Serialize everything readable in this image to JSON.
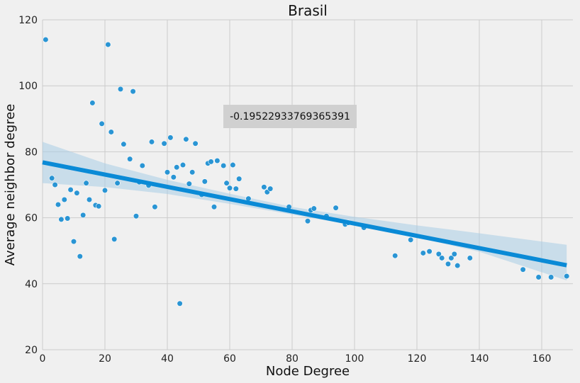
{
  "chart_data": {
    "type": "scatter",
    "title": "Brasil",
    "xlabel": "Node Degree",
    "ylabel": "Average neighbor degree",
    "xlim": [
      0,
      170
    ],
    "ylim": [
      20,
      120
    ],
    "xticks": [
      0,
      20,
      40,
      60,
      80,
      100,
      120,
      140,
      160
    ],
    "yticks": [
      20,
      40,
      60,
      80,
      100,
      120
    ],
    "grid": true,
    "annotation": "-0.19522933769365391",
    "colors": {
      "points": "#1f8fd2",
      "regression": "#0a8ad6",
      "ci_band": "#a9cde6",
      "background": "#f0f0f0",
      "grid": "#cbcbcb",
      "annotation_box": "#d0d0d0"
    },
    "points": [
      [
        1,
        114
      ],
      [
        3,
        72
      ],
      [
        4,
        70
      ],
      [
        5,
        64
      ],
      [
        6,
        59.5
      ],
      [
        7,
        65.5
      ],
      [
        8,
        59.8
      ],
      [
        9,
        68.5
      ],
      [
        10,
        52.8
      ],
      [
        11,
        67.5
      ],
      [
        12,
        48.3
      ],
      [
        13,
        60.8
      ],
      [
        14,
        70.5
      ],
      [
        15,
        65.5
      ],
      [
        16,
        94.8
      ],
      [
        17,
        63.8
      ],
      [
        18,
        63.5
      ],
      [
        19,
        88.5
      ],
      [
        20,
        68.3
      ],
      [
        21,
        112.5
      ],
      [
        22,
        86
      ],
      [
        23,
        53.5
      ],
      [
        24,
        70.5
      ],
      [
        25,
        99
      ],
      [
        26,
        82.3
      ],
      [
        28,
        77.8
      ],
      [
        29,
        98.3
      ],
      [
        30,
        60.5
      ],
      [
        31,
        70.8
      ],
      [
        32,
        75.8
      ],
      [
        34,
        69.8
      ],
      [
        35,
        83
      ],
      [
        36,
        63.3
      ],
      [
        39,
        82.5
      ],
      [
        40,
        73.8
      ],
      [
        41,
        84.3
      ],
      [
        42,
        72.3
      ],
      [
        43,
        75.3
      ],
      [
        44,
        34
      ],
      [
        45,
        76
      ],
      [
        46,
        83.8
      ],
      [
        47,
        70.3
      ],
      [
        48,
        73.8
      ],
      [
        49,
        82.5
      ],
      [
        51,
        67
      ],
      [
        52,
        71
      ],
      [
        53,
        76.5
      ],
      [
        54,
        77
      ],
      [
        55,
        63.3
      ],
      [
        56,
        77.3
      ],
      [
        58,
        75.8
      ],
      [
        59,
        70.5
      ],
      [
        60,
        69
      ],
      [
        61,
        76
      ],
      [
        62,
        68.8
      ],
      [
        63,
        71.8
      ],
      [
        66,
        65.8
      ],
      [
        71,
        69.3
      ],
      [
        72,
        67.8
      ],
      [
        73,
        68.8
      ],
      [
        79,
        63.3
      ],
      [
        85,
        59
      ],
      [
        86,
        62.3
      ],
      [
        87,
        62.8
      ],
      [
        91,
        60.5
      ],
      [
        94,
        63
      ],
      [
        97,
        58
      ],
      [
        98,
        58.5
      ],
      [
        103,
        57
      ],
      [
        113,
        48.5
      ],
      [
        118,
        53.3
      ],
      [
        122,
        49.3
      ],
      [
        124,
        49.8
      ],
      [
        127,
        49
      ],
      [
        128,
        47.8
      ],
      [
        130,
        46
      ],
      [
        131,
        47.8
      ],
      [
        132,
        49
      ],
      [
        133,
        45.5
      ],
      [
        137,
        47.8
      ],
      [
        154,
        44.3
      ],
      [
        159,
        42
      ],
      [
        163,
        42
      ],
      [
        168,
        42.3
      ]
    ],
    "regression": {
      "x": [
        0,
        168
      ],
      "y": [
        76.8,
        45.6
      ]
    },
    "confidence_band": {
      "x": [
        0,
        20,
        40,
        60,
        80,
        100,
        120,
        140,
        168
      ],
      "upper": [
        83,
        76.5,
        71.5,
        67.3,
        63.3,
        60.3,
        57.7,
        55.3,
        51.8
      ],
      "lower": [
        70.5,
        69.3,
        67.2,
        64.2,
        61,
        57.7,
        54,
        49.7,
        41
      ]
    }
  }
}
